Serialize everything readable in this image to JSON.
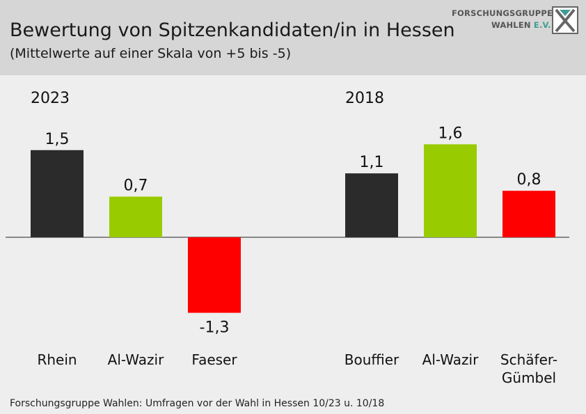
{
  "header": {
    "title": "Bewertung von Spitzenkandidaten/in in Hessen",
    "subtitle": "(Mittelwerte auf einer Skala von +5 bis -5)"
  },
  "logo": {
    "line1": "FORSCHUNGSGRUPPE",
    "line2_main": "WAHLEN ",
    "line2_accent": "E.V."
  },
  "source": "Forschungsgruppe Wahlen: Umfragen vor der Wahl in Hessen 10/23 u. 10/18",
  "chart_data": {
    "type": "bar",
    "title": "Bewertung von Spitzenkandidaten/in in Hessen",
    "subtitle": "(Mittelwerte auf einer Skala von +5 bis -5)",
    "ylim": [
      -5,
      5
    ],
    "grid": false,
    "groups": [
      {
        "label": "2023",
        "bars": [
          {
            "name": "Rhein",
            "value": 1.5,
            "label": "1,5",
            "color": "#2b2b2b"
          },
          {
            "name": "Al-Wazir",
            "value": 0.7,
            "label": "0,7",
            "color": "#99cc00"
          },
          {
            "name": "Faeser",
            "value": -1.3,
            "label": "-1,3",
            "color": "#ff0000"
          }
        ]
      },
      {
        "label": "2018",
        "bars": [
          {
            "name": "Bouffier",
            "value": 1.1,
            "label": "1,1",
            "color": "#2b2b2b"
          },
          {
            "name": "Al-Wazir",
            "value": 1.6,
            "label": "1,6",
            "color": "#99cc00"
          },
          {
            "name": "Schäfer-\nGümbel",
            "value": 0.8,
            "label": "0,8",
            "color": "#ff0000"
          }
        ]
      }
    ]
  }
}
